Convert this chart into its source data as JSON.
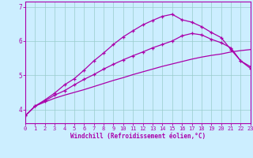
{
  "xlabel": "Windchill (Refroidissement éolien,°C)",
  "bg_color": "#cceeff",
  "line_color": "#aa00aa",
  "grid_color": "#99cccc",
  "x_ticks": [
    0,
    1,
    2,
    3,
    4,
    5,
    6,
    7,
    8,
    9,
    10,
    11,
    12,
    13,
    14,
    15,
    16,
    17,
    18,
    19,
    20,
    21,
    22,
    23
  ],
  "y_ticks": [
    4,
    5,
    6,
    7
  ],
  "xlim": [
    0,
    23
  ],
  "ylim": [
    3.6,
    7.15
  ],
  "curve_top_x": [
    0,
    1,
    2,
    3,
    4,
    5,
    6,
    7,
    8,
    9,
    10,
    11,
    12,
    13,
    14,
    15,
    16,
    17,
    18,
    19,
    20,
    21,
    22,
    23
  ],
  "curve_top_y": [
    3.82,
    4.1,
    4.28,
    4.48,
    4.72,
    4.9,
    5.15,
    5.42,
    5.65,
    5.9,
    6.12,
    6.3,
    6.47,
    6.6,
    6.72,
    6.78,
    6.62,
    6.55,
    6.42,
    6.25,
    6.1,
    5.75,
    5.42,
    5.25
  ],
  "curve_mid_x": [
    0,
    1,
    2,
    3,
    4,
    5,
    6,
    7,
    8,
    9,
    10,
    11,
    12,
    13,
    14,
    15,
    16,
    17,
    18,
    19,
    20,
    21,
    22,
    23
  ],
  "curve_mid_y": [
    3.82,
    4.1,
    4.25,
    4.42,
    4.55,
    4.72,
    4.88,
    5.02,
    5.18,
    5.32,
    5.45,
    5.57,
    5.68,
    5.8,
    5.9,
    6.0,
    6.15,
    6.22,
    6.18,
    6.05,
    5.95,
    5.8,
    5.42,
    5.2
  ],
  "curve_bot_x": [
    0,
    1,
    2,
    3,
    4,
    5,
    6,
    7,
    8,
    9,
    10,
    11,
    12,
    13,
    14,
    15,
    16,
    17,
    18,
    19,
    20,
    21,
    22,
    23
  ],
  "curve_bot_y": [
    3.82,
    4.1,
    4.22,
    4.33,
    4.42,
    4.5,
    4.58,
    4.67,
    4.76,
    4.85,
    4.93,
    5.02,
    5.1,
    5.18,
    5.26,
    5.33,
    5.4,
    5.47,
    5.53,
    5.58,
    5.62,
    5.68,
    5.72,
    5.75
  ],
  "marker": "+",
  "markersize": 3.5,
  "linewidth": 0.9,
  "tick_fontsize": 5.0,
  "xlabel_fontsize": 5.5
}
